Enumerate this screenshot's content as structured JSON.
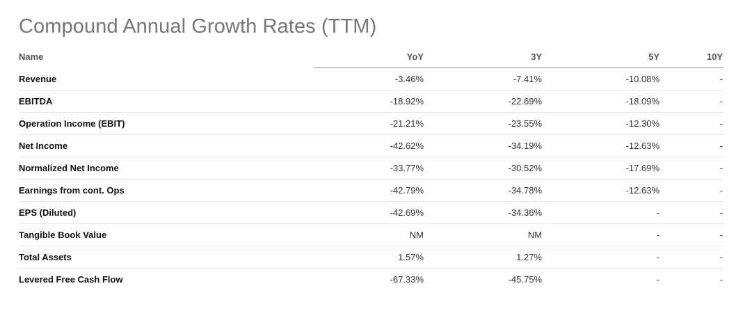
{
  "title": "Compound Annual Growth Rates (TTM)",
  "table": {
    "headers": [
      "Name",
      "YoY",
      "3Y",
      "5Y",
      "10Y"
    ],
    "rows": [
      {
        "name": "Revenue",
        "yoy": "-3.46%",
        "y3": "-7.41%",
        "y5": "-10.08%",
        "y10": "-"
      },
      {
        "name": "EBITDA",
        "yoy": "-18.92%",
        "y3": "-22.69%",
        "y5": "-18.09%",
        "y10": "-"
      },
      {
        "name": "Operation Income (EBIT)",
        "yoy": "-21.21%",
        "y3": "-23.55%",
        "y5": "-12.30%",
        "y10": "-"
      },
      {
        "name": "Net Income",
        "yoy": "-42.62%",
        "y3": "-34.19%",
        "y5": "-12.63%",
        "y10": "-"
      },
      {
        "name": "Normalized Net Income",
        "yoy": "-33.77%",
        "y3": "-30.52%",
        "y5": "-17.69%",
        "y10": "-"
      },
      {
        "name": "Earnings from cont. Ops",
        "yoy": "-42.79%",
        "y3": "-34.78%",
        "y5": "-12.63%",
        "y10": "-"
      },
      {
        "name": "EPS (Diluted)",
        "yoy": "-42.69%",
        "y3": "-34.36%",
        "y5": "-",
        "y10": "-"
      },
      {
        "name": "Tangible Book Value",
        "yoy": "NM",
        "y3": "NM",
        "y5": "-",
        "y10": "-"
      },
      {
        "name": "Total Assets",
        "yoy": "1.57%",
        "y3": "1.27%",
        "y5": "-",
        "y10": "-"
      },
      {
        "name": "Levered Free Cash Flow",
        "yoy": "-67.33%",
        "y3": "-45.75%",
        "y5": "-",
        "y10": "-"
      }
    ]
  }
}
